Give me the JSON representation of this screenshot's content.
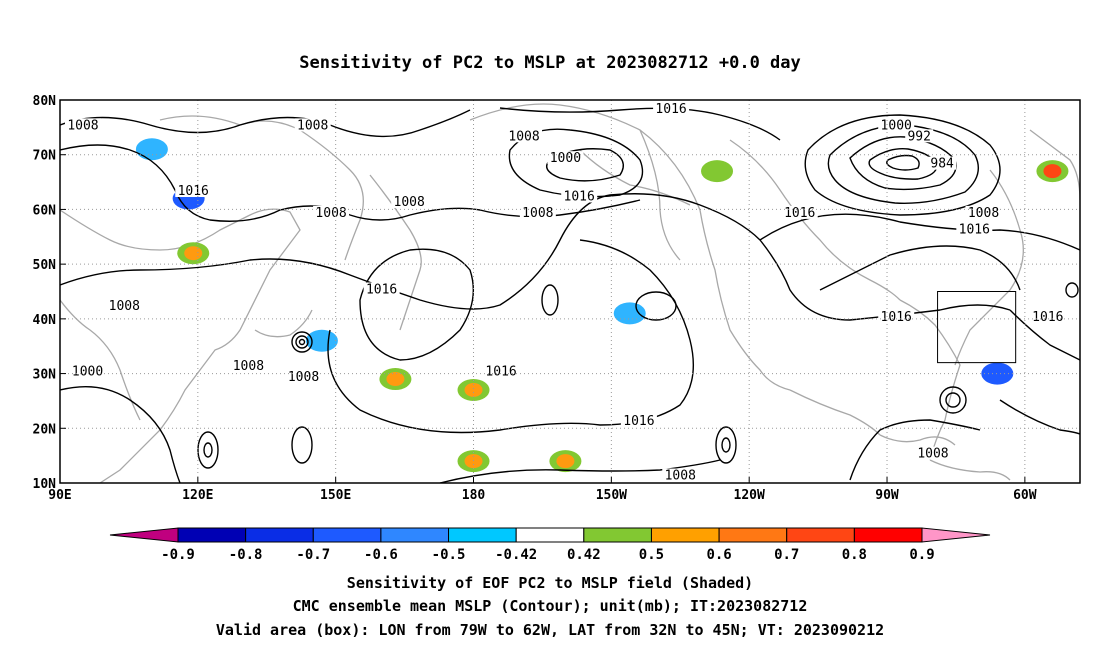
{
  "chart_data": {
    "type": "heatmap",
    "title": "Sensitivity of PC2 to MSLP at 2023082712 +0.0 day",
    "x_ticks": [
      "90E",
      "120E",
      "150E",
      "180",
      "150W",
      "120W",
      "90W",
      "60W"
    ],
    "y_ticks": [
      "10N",
      "20N",
      "30N",
      "40N",
      "50N",
      "60N",
      "70N",
      "80N"
    ],
    "x_range": [
      90,
      312
    ],
    "y_range": [
      10,
      80
    ],
    "grid": true,
    "contour_levels": [
      984,
      992,
      1000,
      1008,
      1016
    ],
    "contour_labels": [
      {
        "text": "1008",
        "lon": 95,
        "lat": 75
      },
      {
        "text": "1008",
        "lon": 145,
        "lat": 75
      },
      {
        "text": "1016",
        "lon": 119,
        "lat": 63
      },
      {
        "text": "1008",
        "lon": 149,
        "lat": 59
      },
      {
        "text": "1008",
        "lon": 166,
        "lat": 61
      },
      {
        "text": "1008",
        "lon": 191,
        "lat": 73
      },
      {
        "text": "1016",
        "lon": 223,
        "lat": 78
      },
      {
        "text": "1000",
        "lon": 200,
        "lat": 69
      },
      {
        "text": "1016",
        "lon": 203,
        "lat": 62
      },
      {
        "text": "1008",
        "lon": 194,
        "lat": 59
      },
      {
        "text": "1000",
        "lon": 272,
        "lat": 75
      },
      {
        "text": "992",
        "lon": 277,
        "lat": 73
      },
      {
        "text": "984",
        "lon": 282,
        "lat": 68
      },
      {
        "text": "1016",
        "lon": 251,
        "lat": 59
      },
      {
        "text": "1008",
        "lon": 291,
        "lat": 59
      },
      {
        "text": "1016",
        "lon": 289,
        "lat": 56
      },
      {
        "text": "1008",
        "lon": 104,
        "lat": 42
      },
      {
        "text": "1016",
        "lon": 160,
        "lat": 45
      },
      {
        "text": "1000",
        "lon": 96,
        "lat": 30
      },
      {
        "text": "1008",
        "lon": 131,
        "lat": 31
      },
      {
        "text": "1008",
        "lon": 143,
        "lat": 29
      },
      {
        "text": "1016",
        "lon": 186,
        "lat": 30
      },
      {
        "text": "1016",
        "lon": 216,
        "lat": 21
      },
      {
        "text": "1008",
        "lon": 225,
        "lat": 11
      },
      {
        "text": "1016",
        "lon": 272,
        "lat": 40
      },
      {
        "text": "1008",
        "lon": 280,
        "lat": 15
      },
      {
        "text": "1016",
        "lon": 305,
        "lat": 40
      }
    ],
    "valid_box": {
      "lon": [
        281,
        298
      ],
      "lat": [
        32,
        45
      ]
    },
    "shaded_regions": [
      {
        "lon": 118,
        "lat": 62,
        "value": -0.6
      },
      {
        "lon": 110,
        "lat": 71,
        "value": -0.5
      },
      {
        "lon": 119,
        "lat": 52,
        "value": 0.6
      },
      {
        "lon": 214,
        "lat": 41,
        "value": -0.5
      },
      {
        "lon": 163,
        "lat": 29,
        "value": 0.6
      },
      {
        "lon": 180,
        "lat": 27,
        "value": 0.6
      },
      {
        "lon": 180,
        "lat": 14,
        "value": 0.6
      },
      {
        "lon": 200,
        "lat": 14,
        "value": 0.6
      },
      {
        "lon": 233,
        "lat": 67,
        "value": 0.5
      },
      {
        "lon": 294,
        "lat": 30,
        "value": -0.6
      },
      {
        "lon": 306,
        "lat": 67,
        "value": 0.8
      },
      {
        "lon": 147,
        "lat": 36,
        "value": -0.5
      }
    ]
  },
  "colorbar": {
    "colors": [
      "#c0007f",
      "#0000b4",
      "#0a2de6",
      "#1e5aff",
      "#2f87ff",
      "#00c8ff",
      "#ffffff",
      "#82c832",
      "#ffa000",
      "#ff7814",
      "#ff4614",
      "#ff0000",
      "#ff96c8"
    ],
    "labels": [
      "-0.9",
      "-0.8",
      "-0.7",
      "-0.6",
      "-0.5",
      "-0.42",
      "0.42",
      "0.5",
      "0.6",
      "0.7",
      "0.8",
      "0.9"
    ]
  },
  "captions": {
    "line1": "Sensitivity of EOF PC2 to MSLP field (Shaded)",
    "line2": "CMC ensemble mean MSLP (Contour); unit(mb); IT:2023082712",
    "line3": "Valid area (box): LON from 79W to 62W, LAT from 32N to 45N; VT: 2023090212"
  }
}
